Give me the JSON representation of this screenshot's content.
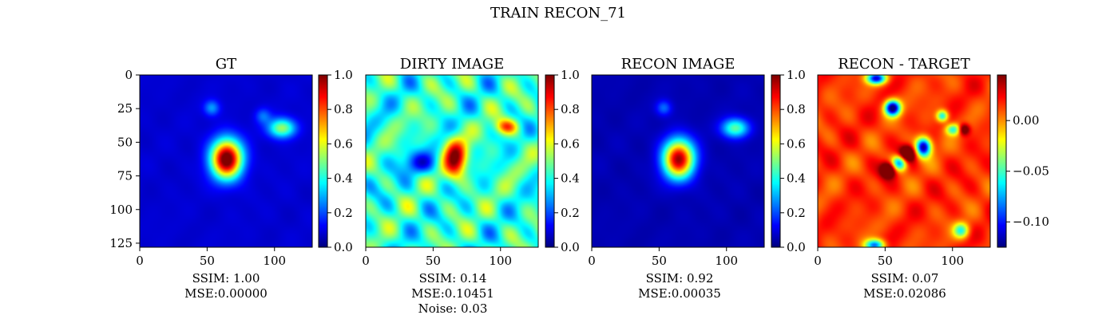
{
  "figure_title": "TRAIN RECON_71",
  "chart_data": [
    {
      "type": "heatmap",
      "title": "GT",
      "x_ticks": [
        0,
        50,
        100
      ],
      "y_ticks": [
        0,
        25,
        50,
        75,
        100,
        125
      ],
      "xlim": [
        0,
        128
      ],
      "ylim": [
        128,
        0
      ],
      "colormap": "jet",
      "colorbar": {
        "range": [
          0.0,
          1.0
        ],
        "ticks": [
          "0.0",
          "0.2",
          "0.4",
          "0.6",
          "0.8",
          "1.0"
        ]
      },
      "sources": [
        {
          "x": 64,
          "y": 62,
          "amplitude": 1.0,
          "sigma_x": 8,
          "sigma_y": 10
        },
        {
          "x": 105,
          "y": 39,
          "amplitude": 0.45,
          "sigma_x": 7,
          "sigma_y": 5
        },
        {
          "x": 53,
          "y": 24,
          "amplitude": 0.2,
          "sigma_x": 4,
          "sigma_y": 4
        },
        {
          "x": 91,
          "y": 30,
          "amplitude": 0.15,
          "sigma_x": 4,
          "sigma_y": 4
        }
      ],
      "background": 0.08,
      "stats": [
        "SSIM: 1.00",
        "MSE:0.00000"
      ]
    },
    {
      "type": "heatmap",
      "title": "DIRTY IMAGE",
      "x_ticks": [
        0,
        50,
        100
      ],
      "xlim": [
        0,
        128
      ],
      "ylim": [
        128,
        0
      ],
      "colormap": "jet",
      "colorbar": {
        "range": [
          0.0,
          1.0
        ],
        "ticks": [
          "0.0",
          "0.2",
          "0.4",
          "0.6",
          "0.8",
          "1.0"
        ]
      },
      "sources": [
        {
          "x": 66,
          "y": 62,
          "amplitude": 0.55,
          "sigma_x": 6,
          "sigma_y": 10
        },
        {
          "x": 104,
          "y": 38,
          "amplitude": 0.35,
          "sigma_x": 6,
          "sigma_y": 4
        },
        {
          "x": 40,
          "y": 65,
          "amplitude": -0.25,
          "sigma_x": 10,
          "sigma_y": 6
        }
      ],
      "background": 0.42,
      "stats": [
        "SSIM: 0.14",
        "MSE:0.10451",
        "Noise: 0.03"
      ]
    },
    {
      "type": "heatmap",
      "title": "RECON IMAGE",
      "x_ticks": [
        0,
        50,
        100
      ],
      "xlim": [
        0,
        128
      ],
      "ylim": [
        128,
        0
      ],
      "colormap": "jet",
      "colorbar": {
        "range": [
          0.0,
          1.0
        ],
        "ticks": [
          "0.0",
          "0.2",
          "0.4",
          "0.6",
          "0.8",
          "1.0"
        ]
      },
      "sources": [
        {
          "x": 64,
          "y": 62,
          "amplitude": 0.92,
          "sigma_x": 8,
          "sigma_y": 10
        },
        {
          "x": 106,
          "y": 39,
          "amplitude": 0.42,
          "sigma_x": 7,
          "sigma_y": 5
        },
        {
          "x": 53,
          "y": 24,
          "amplitude": 0.18,
          "sigma_x": 4,
          "sigma_y": 4
        }
      ],
      "background": 0.05,
      "stats": [
        "SSIM: 0.92",
        "MSE:0.00035"
      ]
    },
    {
      "type": "heatmap",
      "title": "RECON - TARGET",
      "x_ticks": [
        0,
        50,
        100
      ],
      "xlim": [
        0,
        128
      ],
      "ylim": [
        128,
        0
      ],
      "colormap": "jet",
      "colorbar": {
        "range": [
          -0.125,
          0.045
        ],
        "ticks": [
          "0.00",
          "−0.05",
          "−0.10"
        ],
        "tick_values": [
          0.0,
          -0.05,
          -0.1
        ]
      },
      "sources": [
        {
          "x": 55,
          "y": 24,
          "amplitude": -0.15,
          "sigma_x": 4,
          "sigma_y": 4
        },
        {
          "x": 78,
          "y": 53,
          "amplitude": -0.14,
          "sigma_x": 4,
          "sigma_y": 5
        },
        {
          "x": 60,
          "y": 65,
          "amplitude": -0.1,
          "sigma_x": 4,
          "sigma_y": 4
        },
        {
          "x": 43,
          "y": 2,
          "amplitude": -0.12,
          "sigma_x": 5,
          "sigma_y": 3
        },
        {
          "x": 42,
          "y": 126,
          "amplitude": -0.1,
          "sigma_x": 5,
          "sigma_y": 3
        },
        {
          "x": 100,
          "y": 40,
          "amplitude": -0.07,
          "sigma_x": 4,
          "sigma_y": 3
        },
        {
          "x": 106,
          "y": 115,
          "amplitude": -0.07,
          "sigma_x": 4,
          "sigma_y": 4
        },
        {
          "x": 92,
          "y": 30,
          "amplitude": -0.08,
          "sigma_x": 3,
          "sigma_y": 3
        },
        {
          "x": 66,
          "y": 58,
          "amplitude": 0.08,
          "sigma_x": 4,
          "sigma_y": 4
        },
        {
          "x": 52,
          "y": 70,
          "amplitude": 0.08,
          "sigma_x": 4,
          "sigma_y": 4
        },
        {
          "x": 108,
          "y": 40,
          "amplitude": 0.06,
          "sigma_x": 3,
          "sigma_y": 3
        }
      ],
      "background": 0.015,
      "stats": [
        "SSIM: 0.07",
        "MSE:0.02086"
      ]
    }
  ]
}
